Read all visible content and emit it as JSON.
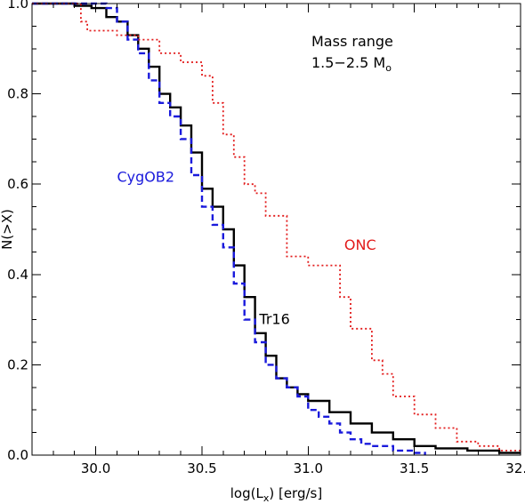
{
  "chart_data": {
    "type": "line",
    "title": "",
    "xlabel": "log(L",
    "xlabel_sub": "x",
    "xlabel_rest": ") [erg/s]",
    "ylabel": "N(>X)",
    "xlim": [
      29.7,
      32.0
    ],
    "ylim": [
      0.0,
      1.0
    ],
    "x_ticks": [
      30.0,
      30.5,
      31.0,
      31.5,
      32.0
    ],
    "x_tick_labels": [
      "30.0",
      "30.5",
      "31.0",
      "31.5",
      "32.0"
    ],
    "y_ticks": [
      0.0,
      0.2,
      0.4,
      0.6,
      0.8,
      1.0
    ],
    "y_tick_labels": [
      "0.0",
      "0.2",
      "0.4",
      "0.6",
      "0.8",
      "1.0"
    ],
    "grid": false,
    "annotation_lines": [
      "Mass range",
      "1.5−2.5 M"
    ],
    "annotation_sub": "o",
    "series": [
      {
        "name": "Tr16",
        "color": "#000000",
        "style": "solid",
        "label_anchor": [
          30.77,
          0.29
        ],
        "x": [
          29.7,
          29.9,
          29.98,
          30.05,
          30.1,
          30.15,
          30.2,
          30.25,
          30.3,
          30.35,
          30.4,
          30.45,
          30.5,
          30.55,
          30.6,
          30.65,
          30.7,
          30.75,
          30.8,
          30.85,
          30.9,
          30.95,
          31.0,
          31.1,
          31.2,
          31.3,
          31.4,
          31.5,
          31.6,
          31.75,
          31.9,
          32.0
        ],
        "values": [
          1.0,
          0.995,
          0.99,
          0.97,
          0.96,
          0.93,
          0.9,
          0.86,
          0.8,
          0.77,
          0.73,
          0.67,
          0.59,
          0.55,
          0.5,
          0.42,
          0.35,
          0.27,
          0.22,
          0.17,
          0.15,
          0.135,
          0.12,
          0.095,
          0.07,
          0.05,
          0.035,
          0.02,
          0.015,
          0.01,
          0.005,
          0.005
        ]
      },
      {
        "name": "CygOB2",
        "color": "#1a1adc",
        "style": "dashed",
        "label_anchor": [
          30.1,
          0.605
        ],
        "x": [
          29.7,
          29.9,
          30.0,
          30.05,
          30.1,
          30.15,
          30.2,
          30.25,
          30.3,
          30.35,
          30.4,
          30.45,
          30.5,
          30.55,
          30.6,
          30.65,
          30.7,
          30.75,
          30.8,
          30.85,
          30.9,
          30.95,
          31.0,
          31.05,
          31.1,
          31.15,
          31.2,
          31.25,
          31.3,
          31.4,
          31.5,
          31.55
        ],
        "values": [
          1.0,
          1.0,
          1.0,
          0.99,
          0.96,
          0.92,
          0.89,
          0.83,
          0.78,
          0.75,
          0.7,
          0.62,
          0.55,
          0.51,
          0.46,
          0.38,
          0.3,
          0.25,
          0.2,
          0.17,
          0.15,
          0.13,
          0.1,
          0.085,
          0.07,
          0.05,
          0.035,
          0.025,
          0.02,
          0.01,
          0.005,
          0.0
        ]
      },
      {
        "name": "ONC",
        "color": "#e21a1a",
        "style": "dotted",
        "label_anchor": [
          31.17,
          0.455
        ],
        "x": [
          29.7,
          29.9,
          29.93,
          29.96,
          30.0,
          30.05,
          30.1,
          30.2,
          30.3,
          30.4,
          30.5,
          30.55,
          30.6,
          30.65,
          30.7,
          30.75,
          30.8,
          30.9,
          31.0,
          31.1,
          31.15,
          31.2,
          31.3,
          31.35,
          31.4,
          31.5,
          31.6,
          31.7,
          31.8,
          31.9,
          32.0
        ],
        "values": [
          1.0,
          1.0,
          0.96,
          0.94,
          0.94,
          0.94,
          0.93,
          0.92,
          0.89,
          0.87,
          0.84,
          0.78,
          0.71,
          0.66,
          0.6,
          0.58,
          0.53,
          0.44,
          0.42,
          0.42,
          0.35,
          0.28,
          0.21,
          0.18,
          0.13,
          0.09,
          0.06,
          0.03,
          0.02,
          0.01,
          0.01
        ]
      }
    ]
  }
}
